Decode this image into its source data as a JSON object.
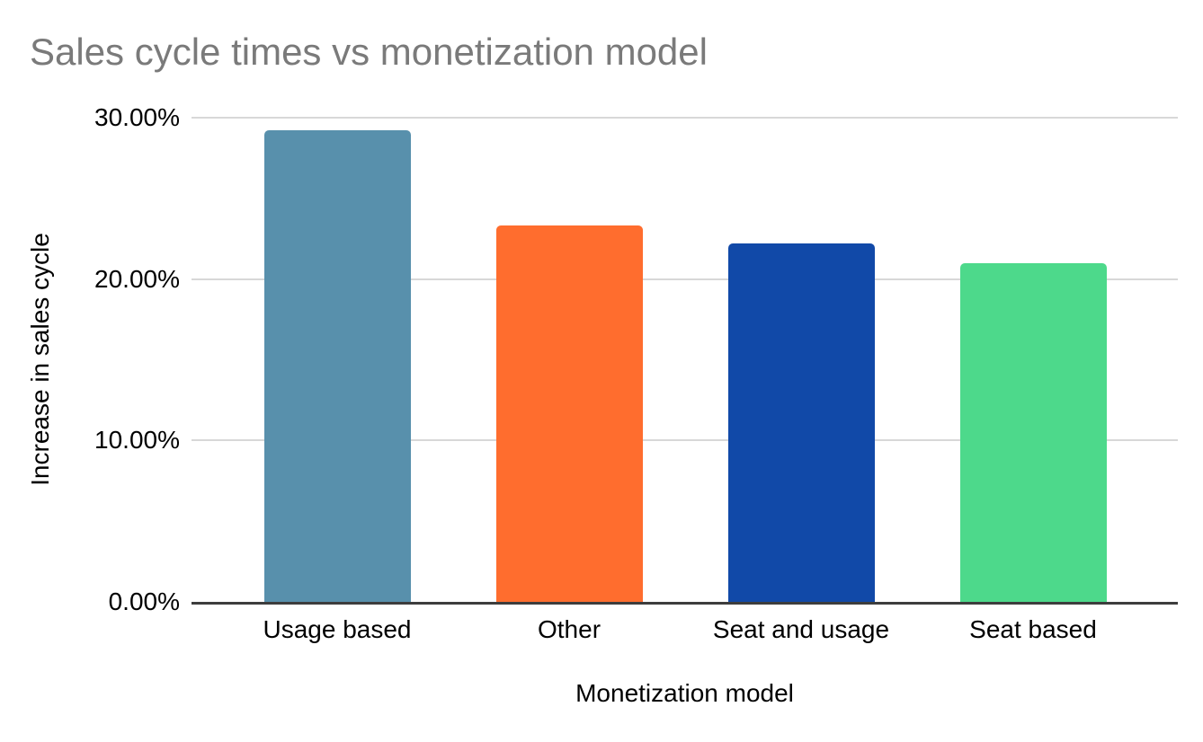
{
  "title": "Sales cycle times vs monetization model",
  "chart_data": {
    "type": "bar",
    "title": "Sales cycle times vs monetization model",
    "categories": [
      "Usage based",
      "Other",
      "Seat and usage",
      "Seat based"
    ],
    "values": [
      29.2,
      23.3,
      22.2,
      21.0
    ],
    "value_unit": "%",
    "xlabel": "Monetization model",
    "ylabel": "Increase in sales cycle",
    "ylim": [
      0,
      30
    ],
    "yticks": [
      {
        "label": "0.00%",
        "value": 0
      },
      {
        "label": "10.00%",
        "value": 10
      },
      {
        "label": "20.00%",
        "value": 20
      },
      {
        "label": "30.00%",
        "value": 30
      }
    ],
    "grid": true,
    "legend_position": "none",
    "bar_colors": [
      "#5890AC",
      "#FF6D2E",
      "#1149A8",
      "#4DD98B"
    ]
  },
  "colors": {
    "background": "#FFFFFF",
    "title_text": "#7A7A7A",
    "axis_text": "#000000",
    "gridline": "#D8D8D8",
    "axis_line": "#3D3D3D"
  }
}
